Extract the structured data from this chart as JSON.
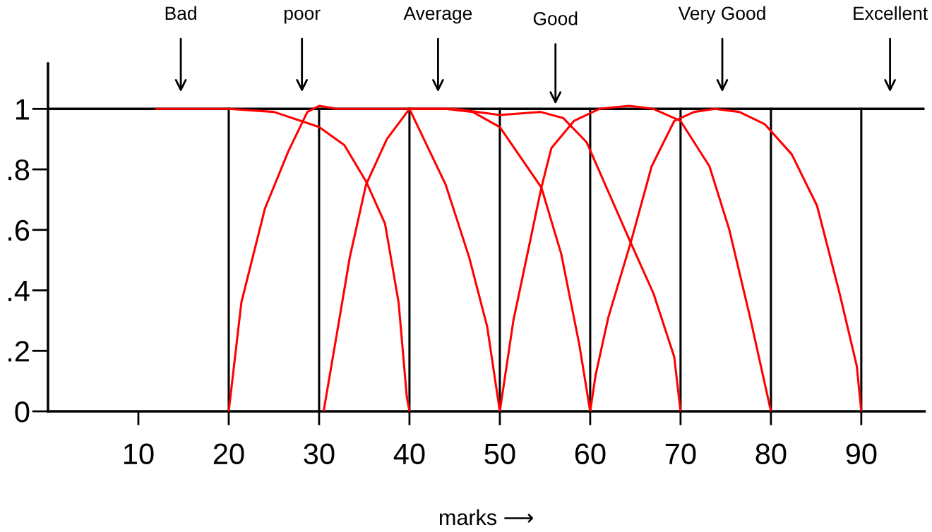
{
  "chart_data": {
    "type": "line",
    "xlabel": "marks ⟶",
    "xlim": [
      0,
      97
    ],
    "xticks": [
      10,
      20,
      30,
      40,
      50,
      60,
      70,
      80,
      90
    ],
    "ylim": [
      0,
      1.15
    ],
    "yticks": [
      0,
      {
        "value": 0.2,
        "label": ".2"
      },
      {
        "value": 0.4,
        "label": ".4"
      },
      {
        "value": 0.6,
        "label": ".6"
      },
      {
        "value": 0.8,
        "label": ".8"
      },
      1
    ],
    "grid": false,
    "legend": false,
    "marker": "none",
    "line_style": "solid",
    "series": [
      {
        "color": "#ff0000",
        "x": [
          12,
          20,
          25,
          30,
          32.8,
          35.2,
          37.3,
          38.8,
          39.7,
          40
        ],
        "values": [
          1,
          1,
          0.99,
          0.94,
          0.88,
          0.76,
          0.62,
          0.36,
          0.05,
          0
        ]
      },
      {
        "color": "#ff0000",
        "x": [
          20,
          21.4,
          24,
          26.6,
          28.7,
          30,
          32,
          36,
          40,
          44,
          46.6,
          48.6,
          50
        ],
        "values": [
          0,
          0.36,
          0.67,
          0.86,
          0.99,
          1.01,
          1,
          1,
          1,
          0.75,
          0.51,
          0.28,
          0
        ]
      },
      {
        "color": "#ff0000",
        "x": [
          30.5,
          32.1,
          33.4,
          35.2,
          37.5,
          40,
          44,
          47,
          50,
          54.6,
          56.8,
          58.8,
          60
        ],
        "values": [
          0,
          0.28,
          0.51,
          0.75,
          0.9,
          1,
          1,
          0.99,
          0.94,
          0.74,
          0.52,
          0.22,
          0
        ]
      },
      {
        "color": "#ff0000",
        "x": [
          40,
          45,
          50,
          54.5,
          57,
          59.6,
          64.3,
          67,
          69.3,
          70
        ],
        "values": [
          1,
          1,
          0.98,
          0.99,
          0.97,
          0.89,
          0.57,
          0.39,
          0.18,
          0
        ]
      },
      {
        "color": "#ff0000",
        "x": [
          50,
          51.5,
          54.6,
          55.7,
          58.2,
          61,
          64.3,
          67,
          70,
          73.2,
          75.4,
          77.7,
          80
        ],
        "values": [
          0,
          0.3,
          0.74,
          0.87,
          0.96,
          1,
          1.01,
          1,
          0.96,
          0.81,
          0.6,
          0.31,
          0
        ]
      },
      {
        "color": "#ff0000",
        "x": [
          60,
          60.6,
          62,
          64.6,
          66.8,
          69.3,
          71.5,
          73.8,
          76.5,
          79.3,
          82.3,
          85.1,
          87.6,
          89.5,
          90
        ],
        "values": [
          0,
          0.12,
          0.31,
          0.57,
          0.81,
          0.96,
          0.99,
          1,
          0.99,
          0.95,
          0.85,
          0.68,
          0.39,
          0.15,
          0
        ]
      }
    ],
    "ref_lines": [
      {
        "axis": "y",
        "value": 1,
        "color": "#000000"
      },
      {
        "axis": "x",
        "value": 20,
        "color": "#000000"
      },
      {
        "axis": "x",
        "value": 30,
        "color": "#000000"
      },
      {
        "axis": "x",
        "value": 40,
        "color": "#000000"
      },
      {
        "axis": "x",
        "value": 50,
        "color": "#000000"
      },
      {
        "axis": "x",
        "value": 60,
        "color": "#000000"
      },
      {
        "axis": "x",
        "value": 70,
        "color": "#000000"
      },
      {
        "axis": "x",
        "value": 80,
        "color": "#000000"
      },
      {
        "axis": "x",
        "value": 90,
        "color": "#000000"
      }
    ],
    "annotations": [
      "Bad",
      "poor",
      "Average",
      "Good",
      "Very Good",
      "Excellent"
    ]
  }
}
